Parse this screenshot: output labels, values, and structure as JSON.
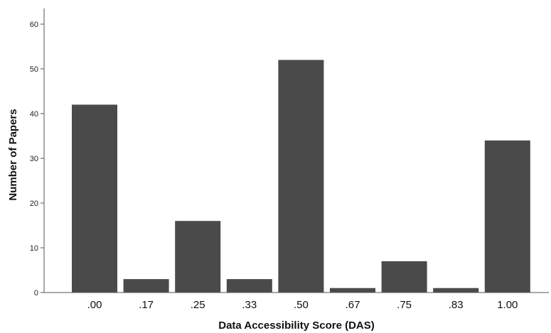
{
  "chart_data": {
    "type": "bar",
    "title": "",
    "xlabel": "Data Accessibility Score (DAS)",
    "ylabel": "Number of Papers",
    "categories": [
      ".00",
      ".17",
      ".25",
      ".33",
      ".50",
      ".67",
      ".75",
      ".83",
      "1.00"
    ],
    "values": [
      42,
      3,
      16,
      3,
      52,
      1,
      7,
      1,
      34
    ],
    "ylim": [
      0,
      60
    ],
    "yticks": [
      0,
      10,
      20,
      30,
      40,
      50,
      60
    ],
    "grid": false,
    "legend": "none",
    "bar_color": "#4a4a4b",
    "axis_color": "#555555"
  }
}
